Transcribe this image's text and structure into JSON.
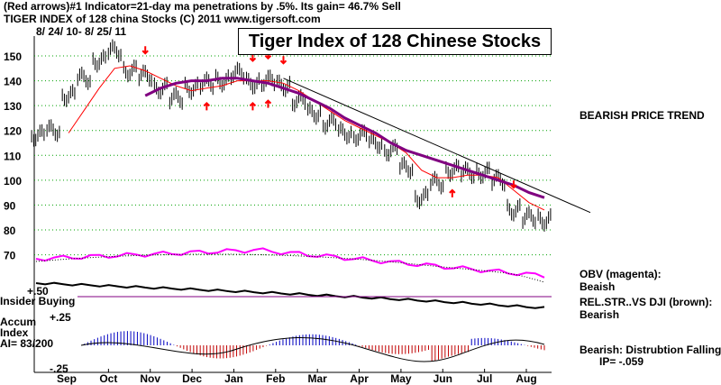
{
  "header": {
    "line1": "(Red arrows)#1 Indicator=21-day ma penetrations by .5%.  Its gain= 46.7% Sell",
    "line2": "TIGER INDEX of  128 china Stocks  (C) 2011   www.tigersoft.com",
    "line3": "8/ 24/ 10-  8/ 25/ 11"
  },
  "chart_data": {
    "type": "line",
    "title": "Tiger Index of 128 Chinese Stocks",
    "x_labels": [
      "Sep",
      "Oct",
      "Nov",
      "Dec",
      "Jan",
      "Feb",
      "Mar",
      "Apr",
      "May",
      "Jun",
      "Jul",
      "Aug"
    ],
    "y_ticks": [
      150,
      140,
      130,
      120,
      110,
      100,
      90,
      80,
      70
    ],
    "ylim": [
      65,
      155
    ],
    "grid": true,
    "series": [
      {
        "key": "price",
        "color": "#000000",
        "values": [
          118,
          120,
          134,
          141,
          148,
          152,
          144,
          142,
          137,
          133,
          137,
          139,
          140,
          143,
          139,
          140,
          138,
          132,
          127,
          123,
          119,
          118,
          115,
          112,
          105,
          93,
          99,
          104,
          103,
          103,
          100,
          88,
          85,
          84
        ]
      },
      {
        "key": "ma21",
        "color": "#ff0000",
        "values": [
          null,
          null,
          119,
          128,
          137,
          145,
          146,
          144,
          141,
          138,
          136,
          137,
          138,
          140,
          140,
          140,
          139,
          136,
          132,
          128,
          124,
          121,
          118,
          115,
          111,
          104,
          101,
          101,
          102,
          102,
          101,
          96,
          91,
          88
        ]
      },
      {
        "key": "ma_long",
        "color": "#800080",
        "values": [
          null,
          null,
          null,
          null,
          null,
          null,
          null,
          134,
          137,
          139,
          140,
          140,
          141,
          141,
          140,
          139,
          137,
          135,
          132,
          129,
          125,
          122,
          119,
          115,
          112,
          110,
          108,
          106,
          104,
          102,
          100,
          98,
          95,
          93
        ]
      },
      {
        "key": "trendline",
        "color": "#000000",
        "values": [
          null,
          null,
          null,
          null,
          null,
          null,
          null,
          null,
          null,
          null,
          null,
          null,
          null,
          null,
          null,
          null,
          null,
          null,
          null,
          null,
          null,
          null,
          null,
          null,
          null,
          null,
          null,
          null,
          null,
          null,
          null,
          null,
          null,
          null
        ]
      }
    ],
    "sell_arrows_x": [
      7,
      14,
      15,
      16,
      31
    ],
    "buy_arrows_x": [
      11,
      14,
      15,
      27
    ],
    "panels": {
      "obv_label": "OBV (magenta):",
      "obv_value": "Beaish",
      "rel_label": "REL.STR..VS DJI (brown):",
      "rel_value": "Bearish",
      "insider_label": "Insider Buying",
      "accum_label_1": "Accum",
      "accum_label_2": "Index",
      "ai_label": "AI= 83/200",
      "tick_p50": "+.50",
      "tick_p25": "+.25",
      "tick_m25": "-.25"
    }
  },
  "notes": {
    "trend": "BEARISH PRICE TREND",
    "bearish_line1": "Bearish:  Distrubtion Falling.",
    "bearish_line2": "IP= -.059"
  }
}
